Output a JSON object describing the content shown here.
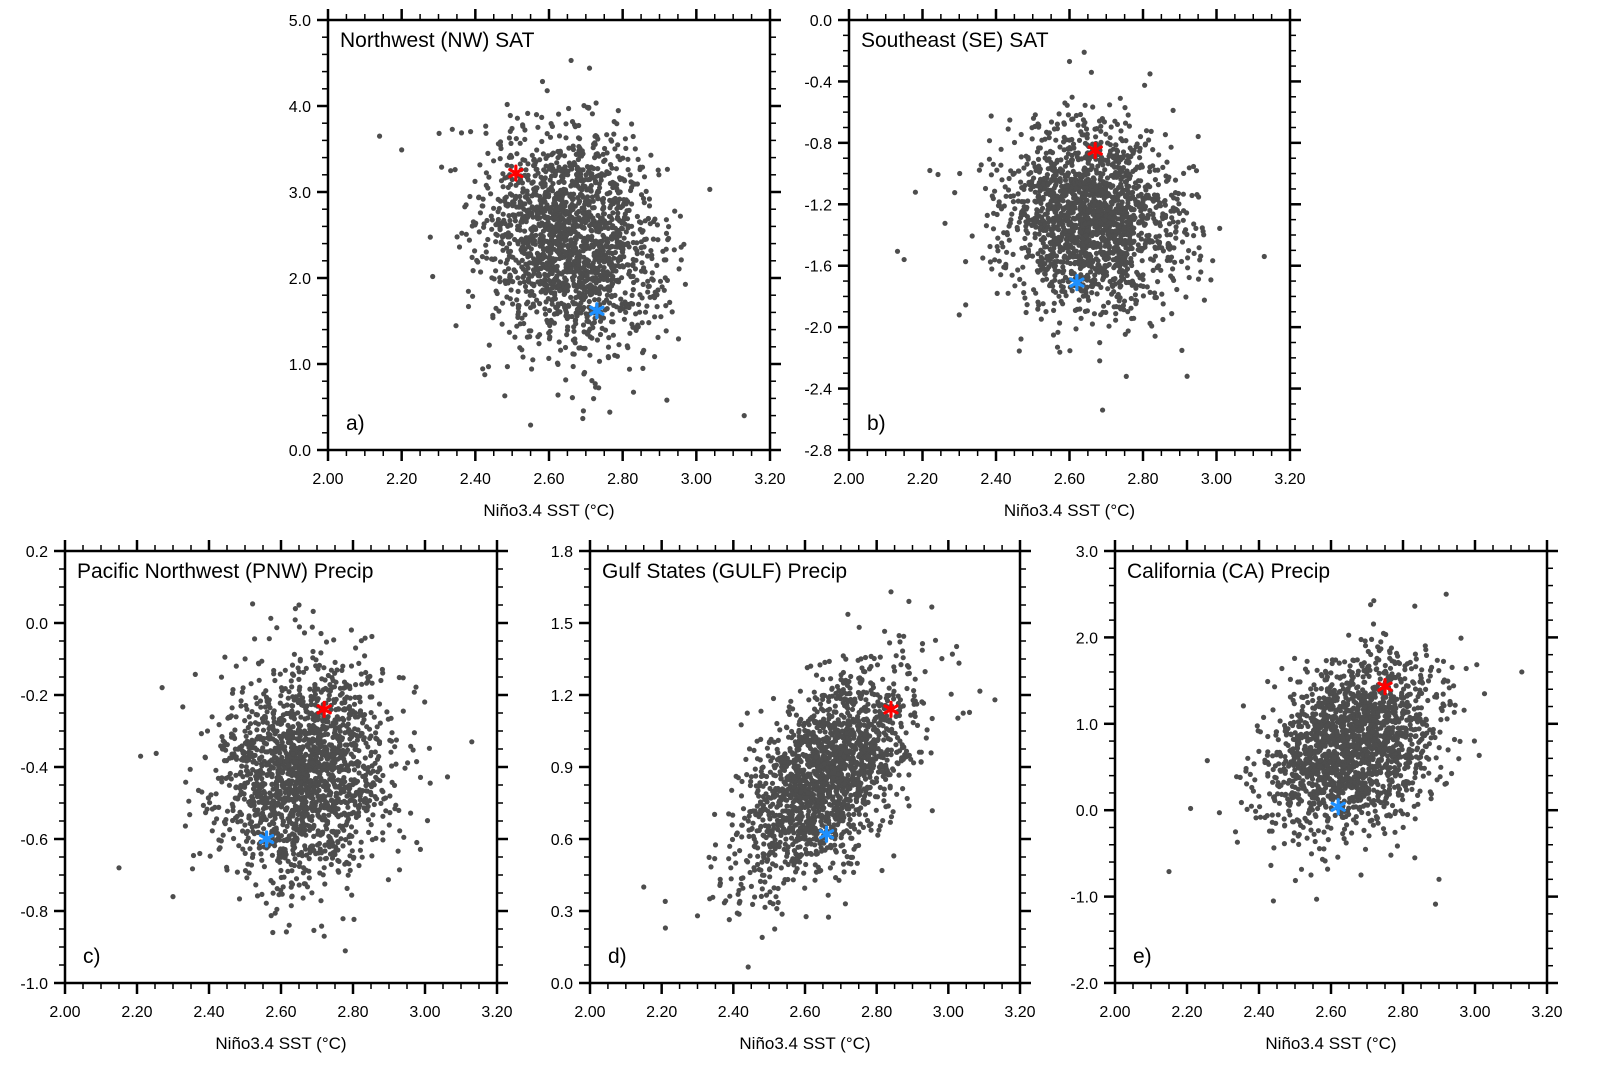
{
  "chart_data": [
    {
      "type": "scatter",
      "panel": "a)",
      "title": "Northwest (NW) SAT",
      "xlabel": "Niño3.4 SST (°C)",
      "ylabel": "",
      "xlim": [
        2.0,
        3.2
      ],
      "ylim": [
        0.0,
        5.0
      ],
      "xticks": [
        "2.00",
        "2.20",
        "2.40",
        "2.60",
        "2.80",
        "3.00",
        "3.20"
      ],
      "yticks": [
        "0.0",
        "1.0",
        "2.0",
        "3.0",
        "4.0",
        "5.0"
      ],
      "ytick_values": [
        0,
        1,
        2,
        3,
        4,
        5
      ],
      "cloud": {
        "n": 1800,
        "x_mean": 2.66,
        "x_std": 0.12,
        "y_mean": 2.45,
        "y_std": 0.62,
        "corr": -0.15,
        "color": "#4d4d4d"
      },
      "outliers": [
        [
          2.14,
          3.65
        ],
        [
          2.2,
          3.49
        ],
        [
          3.13,
          0.4
        ],
        [
          2.55,
          0.29
        ],
        [
          2.66,
          4.53
        ],
        [
          2.71,
          4.44
        ],
        [
          2.48,
          0.63
        ],
        [
          2.92,
          0.58
        ]
      ],
      "highlights": [
        {
          "name": "red-star",
          "x": 2.51,
          "y": 3.22,
          "color": "#ff0000"
        },
        {
          "name": "blue-star",
          "x": 2.73,
          "y": 1.62,
          "color": "#1e90ff"
        }
      ]
    },
    {
      "type": "scatter",
      "panel": "b)",
      "title": "Southeast (SE) SAT",
      "xlabel": "Niño3.4 SST (°C)",
      "ylabel": "",
      "xlim": [
        2.0,
        3.2
      ],
      "ylim": [
        -2.8,
        0.0
      ],
      "xticks": [
        "2.00",
        "2.20",
        "2.40",
        "2.60",
        "2.80",
        "3.00",
        "3.20"
      ],
      "yticks": [
        "-2.8",
        "-2.4",
        "-2.0",
        "-1.6",
        "-1.2",
        "-0.8",
        "-0.4",
        "0.0"
      ],
      "ytick_values": [
        -2.8,
        -2.4,
        -2.0,
        -1.6,
        -1.2,
        -0.8,
        -0.4,
        0.0
      ],
      "cloud": {
        "n": 1800,
        "x_mean": 2.66,
        "x_std": 0.12,
        "y_mean": -1.3,
        "y_std": 0.3,
        "corr": -0.05,
        "color": "#4d4d4d"
      },
      "outliers": [
        [
          2.15,
          -1.56
        ],
        [
          3.13,
          -1.54
        ],
        [
          2.69,
          -2.54
        ],
        [
          2.92,
          -2.32
        ],
        [
          2.64,
          -0.21
        ],
        [
          2.6,
          -0.27
        ],
        [
          2.22,
          -0.98
        ],
        [
          2.3,
          -1.92
        ]
      ],
      "highlights": [
        {
          "name": "red-star",
          "x": 2.67,
          "y": -0.85,
          "color": "#ff0000"
        },
        {
          "name": "blue-star",
          "x": 2.62,
          "y": -1.71,
          "color": "#1e90ff"
        }
      ]
    },
    {
      "type": "scatter",
      "panel": "c)",
      "title": "Pacific Northwest (PNW) Precip",
      "xlabel": "Niño3.4 SST (°C)",
      "ylabel": "",
      "xlim": [
        2.0,
        3.2
      ],
      "ylim": [
        -1.0,
        0.2
      ],
      "xticks": [
        "2.00",
        "2.20",
        "2.40",
        "2.60",
        "2.80",
        "3.00",
        "3.20"
      ],
      "yticks": [
        "-1.0",
        "-0.8",
        "-0.6",
        "-0.4",
        "-0.2",
        "0.0",
        "0.2"
      ],
      "ytick_values": [
        -1.0,
        -0.8,
        -0.6,
        -0.4,
        -0.2,
        0.0,
        0.2
      ],
      "cloud": {
        "n": 1800,
        "x_mean": 2.66,
        "x_std": 0.12,
        "y_mean": -0.42,
        "y_std": 0.15,
        "corr": 0.05,
        "color": "#4d4d4d"
      },
      "outliers": [
        [
          2.15,
          -0.68
        ],
        [
          3.13,
          -0.33
        ],
        [
          2.3,
          -0.76
        ],
        [
          2.65,
          0.05
        ],
        [
          2.64,
          0.04
        ],
        [
          2.72,
          -0.87
        ],
        [
          2.21,
          -0.37
        ]
      ],
      "highlights": [
        {
          "name": "red-star",
          "x": 2.72,
          "y": -0.24,
          "color": "#ff0000"
        },
        {
          "name": "blue-star",
          "x": 2.56,
          "y": -0.6,
          "color": "#1e90ff"
        }
      ]
    },
    {
      "type": "scatter",
      "panel": "d)",
      "title": "Gulf States (GULF) Precip",
      "xlabel": "Niño3.4 SST (°C)",
      "ylabel": "",
      "xlim": [
        2.0,
        3.2
      ],
      "ylim": [
        0.0,
        1.8
      ],
      "xticks": [
        "2.00",
        "2.20",
        "2.40",
        "2.60",
        "2.80",
        "3.00",
        "3.20"
      ],
      "yticks": [
        "0.0",
        "0.3",
        "0.6",
        "0.9",
        "1.2",
        "1.5",
        "1.8"
      ],
      "ytick_values": [
        0.0,
        0.3,
        0.6,
        0.9,
        1.2,
        1.5,
        1.8
      ],
      "cloud": {
        "n": 1800,
        "x_mean": 2.66,
        "x_std": 0.12,
        "y_mean": 0.86,
        "y_std": 0.22,
        "corr": 0.55,
        "color": "#4d4d4d"
      },
      "outliers": [
        [
          2.15,
          0.4
        ],
        [
          3.13,
          1.18
        ],
        [
          2.3,
          0.28
        ],
        [
          2.21,
          0.34
        ],
        [
          2.84,
          1.63
        ],
        [
          2.89,
          1.59
        ]
      ],
      "highlights": [
        {
          "name": "red-star",
          "x": 2.84,
          "y": 1.14,
          "color": "#ff0000"
        },
        {
          "name": "blue-star",
          "x": 2.66,
          "y": 0.62,
          "color": "#1e90ff"
        }
      ]
    },
    {
      "type": "scatter",
      "panel": "e)",
      "title": "California (CA) Precip",
      "xlabel": "Niño3.4 SST (°C)",
      "ylabel": "",
      "xlim": [
        2.0,
        3.2
      ],
      "ylim": [
        -2.0,
        3.0
      ],
      "xticks": [
        "2.00",
        "2.20",
        "2.40",
        "2.60",
        "2.80",
        "3.00",
        "3.20"
      ],
      "yticks": [
        "-2.0",
        "-1.0",
        "0.0",
        "1.0",
        "2.0",
        "3.0"
      ],
      "ytick_values": [
        -2.0,
        -1.0,
        0.0,
        1.0,
        2.0,
        3.0
      ],
      "cloud": {
        "n": 1800,
        "x_mean": 2.66,
        "x_std": 0.12,
        "y_mean": 0.75,
        "y_std": 0.5,
        "corr": 0.3,
        "color": "#4d4d4d"
      },
      "outliers": [
        [
          2.15,
          -0.71
        ],
        [
          3.13,
          1.6
        ],
        [
          2.44,
          -1.05
        ],
        [
          2.56,
          -1.03
        ],
        [
          2.9,
          -0.8
        ],
        [
          2.92,
          2.5
        ],
        [
          2.21,
          0.02
        ]
      ],
      "highlights": [
        {
          "name": "red-star",
          "x": 2.75,
          "y": 1.43,
          "color": "#ff0000"
        },
        {
          "name": "blue-star",
          "x": 2.62,
          "y": 0.04,
          "color": "#1e90ff"
        }
      ]
    }
  ]
}
